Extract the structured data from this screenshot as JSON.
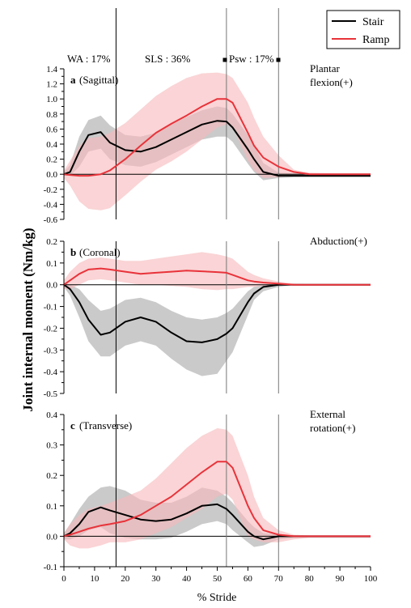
{
  "figure": {
    "ylabel": "Joint internal moment (Nm/kg)",
    "xlabel": "% Stride",
    "legend": [
      {
        "label": "Stair",
        "color": "#000000"
      },
      {
        "label": "Ramp",
        "color": "#e8333a"
      }
    ],
    "phases": [
      {
        "label": "WA : 17%",
        "x": 17
      },
      {
        "label": "SLS : 36%",
        "x": 53
      },
      {
        "label": "Psw : 17%",
        "x": 70
      }
    ],
    "colors": {
      "stair": "#000000",
      "ramp": "#e8333a",
      "stair_band": "#b8b8b8",
      "ramp_band": "#f7b8bb"
    }
  },
  "chart_data": [
    {
      "type": "line",
      "letter": "a",
      "title": "(Sagittal)",
      "annotation": [
        "Plantar",
        "flexion(+)"
      ],
      "ylim": [
        -0.6,
        1.4
      ],
      "yticks": [
        -0.6,
        -0.4,
        -0.2,
        0.0,
        0.2,
        0.4,
        0.6,
        0.8,
        1.0,
        1.2,
        1.4
      ],
      "x": [
        0,
        2,
        5,
        8,
        12,
        15,
        20,
        25,
        30,
        35,
        40,
        45,
        50,
        53,
        55,
        60,
        62,
        65,
        70,
        75,
        80,
        90,
        100
      ],
      "series": [
        {
          "name": "Stair",
          "values": [
            0,
            0.03,
            0.3,
            0.52,
            0.56,
            0.42,
            0.32,
            0.3,
            0.36,
            0.46,
            0.56,
            0.66,
            0.71,
            0.7,
            0.62,
            0.33,
            0.2,
            0.03,
            -0.02,
            -0.02,
            -0.02,
            -0.02,
            -0.02
          ],
          "upper": [
            0.03,
            0.12,
            0.5,
            0.72,
            0.78,
            0.65,
            0.52,
            0.5,
            0.55,
            0.66,
            0.76,
            0.85,
            0.9,
            0.88,
            0.8,
            0.52,
            0.38,
            0.15,
            0.02,
            0.01,
            0.01,
            0.01,
            0.01
          ],
          "lower": [
            -0.02,
            -0.02,
            0.1,
            0.3,
            0.34,
            0.2,
            0.12,
            0.1,
            0.16,
            0.26,
            0.36,
            0.46,
            0.5,
            0.5,
            0.43,
            0.14,
            0.03,
            -0.08,
            -0.05,
            -0.04,
            -0.04,
            -0.04,
            -0.04
          ]
        },
        {
          "name": "Ramp",
          "values": [
            0,
            -0.01,
            -0.02,
            -0.02,
            0.0,
            0.05,
            0.2,
            0.38,
            0.55,
            0.67,
            0.78,
            0.9,
            1.0,
            1.0,
            0.95,
            0.55,
            0.38,
            0.22,
            0.1,
            0.03,
            0.0,
            0.0,
            0.0
          ],
          "upper": [
            0.05,
            0.18,
            0.38,
            0.48,
            0.5,
            0.55,
            0.68,
            0.86,
            1.04,
            1.17,
            1.28,
            1.34,
            1.35,
            1.33,
            1.28,
            0.95,
            0.75,
            0.5,
            0.25,
            0.06,
            0.02,
            0.01,
            0.01
          ],
          "lower": [
            -0.05,
            -0.15,
            -0.36,
            -0.46,
            -0.48,
            -0.45,
            -0.28,
            -0.1,
            0.06,
            0.17,
            0.3,
            0.46,
            0.62,
            0.66,
            0.63,
            0.18,
            0.05,
            -0.05,
            -0.04,
            -0.01,
            -0.02,
            -0.01,
            -0.01
          ]
        }
      ]
    },
    {
      "type": "line",
      "letter": "b",
      "title": "(Coronal)",
      "annotation": [
        "Abduction(+)"
      ],
      "ylim": [
        -0.5,
        0.2
      ],
      "yticks": [
        -0.5,
        -0.4,
        -0.3,
        -0.2,
        -0.1,
        0.0,
        0.1,
        0.2
      ],
      "x": [
        0,
        2,
        5,
        8,
        12,
        15,
        20,
        25,
        30,
        35,
        40,
        45,
        50,
        53,
        55,
        60,
        62,
        65,
        70,
        75,
        80,
        90,
        100
      ],
      "series": [
        {
          "name": "Stair",
          "values": [
            0,
            -0.02,
            -0.08,
            -0.16,
            -0.23,
            -0.22,
            -0.17,
            -0.15,
            -0.17,
            -0.22,
            -0.26,
            -0.265,
            -0.25,
            -0.225,
            -0.2,
            -0.08,
            -0.04,
            -0.01,
            0.0,
            0.0,
            0.0,
            0.0,
            0.0
          ],
          "upper": [
            0.01,
            0.0,
            -0.02,
            -0.07,
            -0.12,
            -0.11,
            -0.07,
            -0.06,
            -0.08,
            -0.12,
            -0.15,
            -0.16,
            -0.15,
            -0.13,
            -0.11,
            -0.03,
            -0.01,
            0.0,
            0.0,
            0.0,
            0.0,
            0.0,
            0.0
          ],
          "lower": [
            -0.01,
            -0.05,
            -0.15,
            -0.26,
            -0.33,
            -0.33,
            -0.28,
            -0.26,
            -0.28,
            -0.34,
            -0.39,
            -0.42,
            -0.41,
            -0.35,
            -0.31,
            -0.14,
            -0.07,
            -0.03,
            -0.01,
            0.0,
            0.0,
            0.0,
            0.0
          ]
        },
        {
          "name": "Ramp",
          "values": [
            0,
            0.02,
            0.05,
            0.07,
            0.075,
            0.07,
            0.06,
            0.05,
            0.055,
            0.06,
            0.065,
            0.062,
            0.058,
            0.055,
            0.045,
            0.02,
            0.015,
            0.01,
            0.005,
            0.0,
            0.0,
            0.0,
            0.0
          ],
          "upper": [
            0.02,
            0.06,
            0.1,
            0.12,
            0.125,
            0.12,
            0.11,
            0.11,
            0.12,
            0.13,
            0.14,
            0.15,
            0.14,
            0.13,
            0.12,
            0.06,
            0.045,
            0.03,
            0.015,
            0.005,
            0.002,
            0.002,
            0.002
          ],
          "lower": [
            -0.02,
            -0.02,
            0.0,
            0.02,
            0.025,
            0.02,
            0.01,
            0.0,
            0.0,
            -0.005,
            -0.01,
            -0.02,
            -0.025,
            -0.02,
            -0.02,
            -0.01,
            -0.01,
            -0.005,
            -0.003,
            -0.002,
            -0.002,
            -0.002,
            -0.002
          ]
        }
      ]
    },
    {
      "type": "line",
      "letter": "c",
      "title": "(Transverse)",
      "annotation": [
        "External",
        "rotation(+)"
      ],
      "ylim": [
        -0.1,
        0.4
      ],
      "yticks": [
        -0.1,
        0.0,
        0.1,
        0.2,
        0.3,
        0.4
      ],
      "x": [
        0,
        2,
        5,
        8,
        12,
        15,
        20,
        25,
        30,
        35,
        40,
        45,
        50,
        53,
        55,
        60,
        62,
        65,
        70,
        75,
        80,
        90,
        100
      ],
      "series": [
        {
          "name": "Stair",
          "values": [
            0,
            0.01,
            0.04,
            0.08,
            0.095,
            0.085,
            0.07,
            0.055,
            0.05,
            0.055,
            0.075,
            0.1,
            0.105,
            0.09,
            0.07,
            0.015,
            0.0,
            -0.01,
            0.0,
            0.0,
            0.0,
            0.0,
            0.0
          ],
          "upper": [
            0.01,
            0.04,
            0.09,
            0.13,
            0.16,
            0.165,
            0.15,
            0.12,
            0.11,
            0.11,
            0.13,
            0.16,
            0.15,
            0.13,
            0.11,
            0.05,
            0.03,
            0.01,
            0.005,
            0.003,
            0.002,
            0.002,
            0.002
          ],
          "lower": [
            -0.01,
            -0.01,
            0.0,
            0.02,
            0.03,
            0.01,
            -0.005,
            -0.01,
            -0.01,
            -0.005,
            0.015,
            0.04,
            0.05,
            0.04,
            0.02,
            -0.02,
            -0.035,
            -0.03,
            -0.01,
            -0.005,
            -0.005,
            -0.005,
            -0.005
          ]
        },
        {
          "name": "Ramp",
          "values": [
            0,
            0.005,
            0.015,
            0.025,
            0.035,
            0.04,
            0.05,
            0.07,
            0.1,
            0.13,
            0.17,
            0.21,
            0.245,
            0.245,
            0.225,
            0.1,
            0.06,
            0.02,
            0.005,
            0.0,
            0.0,
            0.0,
            0.0
          ],
          "upper": [
            0.01,
            0.04,
            0.07,
            0.09,
            0.1,
            0.11,
            0.13,
            0.15,
            0.19,
            0.24,
            0.29,
            0.33,
            0.355,
            0.35,
            0.33,
            0.2,
            0.13,
            0.06,
            0.02,
            0.005,
            0.003,
            0.003,
            0.003
          ],
          "lower": [
            -0.01,
            -0.03,
            -0.04,
            -0.04,
            -0.03,
            -0.02,
            -0.02,
            -0.01,
            0.01,
            0.03,
            0.06,
            0.09,
            0.13,
            0.14,
            0.12,
            0.0,
            -0.01,
            -0.02,
            -0.02,
            -0.01,
            -0.005,
            -0.005,
            -0.005
          ]
        }
      ]
    }
  ]
}
